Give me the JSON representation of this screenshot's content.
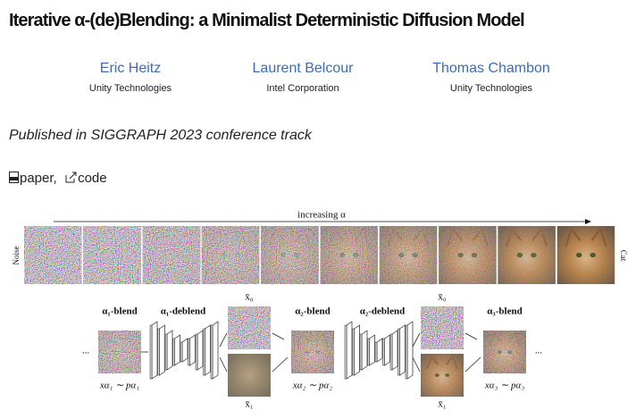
{
  "header": {
    "title": "Iterative α-(de)Blending: a Minimalist Deterministic Diffusion Model"
  },
  "authors": [
    {
      "name": "Eric Heitz",
      "affiliation": "Unity Technologies"
    },
    {
      "name": "Laurent Belcour",
      "affiliation": "Intel Corporation"
    },
    {
      "name": "Thomas Chambon",
      "affiliation": "Unity Technologies"
    }
  ],
  "publication": "Published in SIGGRAPH 2023 conference track",
  "links": {
    "items": [
      "paper",
      "code"
    ],
    "separator": ","
  },
  "figure": {
    "strip_label": "increasing α",
    "left_label": "Noise",
    "right_label": "Cat",
    "ellipsis": "...",
    "blend_1": "α₁-blend",
    "deblend_1": "α₁-deblend",
    "blend_2": "α₂-blend",
    "deblend_2": "α₂-deblend",
    "blend_3": "α₃-blend",
    "x0": "x̄₀",
    "x1": "x̄₁",
    "sample_1": "xα₁ ∼ pα₁",
    "sample_2": "xα₂ ∼ pα₂",
    "sample_3": "xα₃ ∼ pα₃"
  }
}
